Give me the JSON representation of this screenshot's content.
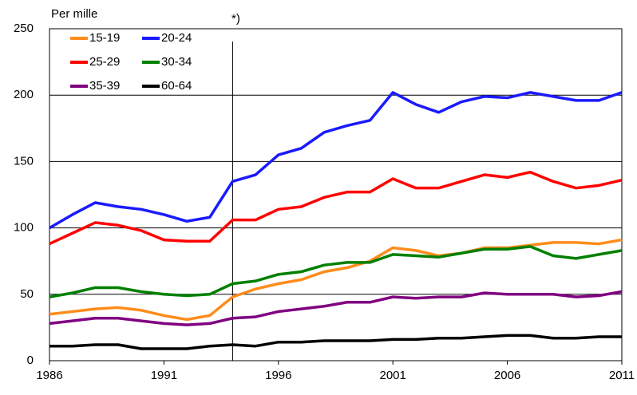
{
  "chart_data": {
    "type": "line",
    "ylabel": "Per mille",
    "x": [
      1986,
      1987,
      1988,
      1989,
      1990,
      1991,
      1992,
      1993,
      1994,
      1995,
      1996,
      1997,
      1998,
      1999,
      2000,
      2001,
      2002,
      2003,
      2004,
      2005,
      2006,
      2007,
      2008,
      2009,
      2010,
      2011
    ],
    "xlim": [
      1986,
      2011
    ],
    "xticks": [
      1986,
      1991,
      1996,
      2001,
      2006,
      2011
    ],
    "ylim": [
      0,
      250
    ],
    "yticks": [
      0,
      50,
      100,
      150,
      200,
      250
    ],
    "grid": true,
    "legend": "top-left",
    "annotations": [
      {
        "text": "*)",
        "x": 1994
      }
    ],
    "series": [
      {
        "name": "15-19",
        "color": "#ff8c1a",
        "values": [
          35,
          37,
          39,
          40,
          38,
          34,
          31,
          34,
          48,
          54,
          58,
          61,
          67,
          70,
          75,
          85,
          83,
          79,
          81,
          85,
          85,
          87,
          89,
          89,
          88,
          91
        ]
      },
      {
        "name": "20-24",
        "color": "#1a1aff",
        "values": [
          100,
          110,
          119,
          116,
          114,
          110,
          105,
          108,
          135,
          140,
          155,
          160,
          172,
          177,
          181,
          202,
          193,
          187,
          195,
          199,
          198,
          202,
          199,
          196,
          196,
          202
        ]
      },
      {
        "name": "25-29",
        "color": "#ff0000",
        "values": [
          88,
          96,
          104,
          102,
          98,
          91,
          90,
          90,
          106,
          106,
          114,
          116,
          123,
          127,
          127,
          137,
          130,
          130,
          135,
          140,
          138,
          142,
          135,
          130,
          132,
          136
        ]
      },
      {
        "name": "30-34",
        "color": "#008000",
        "values": [
          48,
          51,
          55,
          55,
          52,
          50,
          49,
          50,
          58,
          60,
          65,
          67,
          72,
          74,
          74,
          80,
          79,
          78,
          81,
          84,
          84,
          86,
          79,
          77,
          80,
          83
        ]
      },
      {
        "name": "35-39",
        "color": "#800080",
        "values": [
          28,
          30,
          32,
          32,
          30,
          28,
          27,
          28,
          32,
          33,
          37,
          39,
          41,
          44,
          44,
          48,
          47,
          48,
          48,
          51,
          50,
          50,
          50,
          48,
          49,
          52
        ]
      },
      {
        "name": "60-64",
        "color": "#000000",
        "values": [
          11,
          11,
          12,
          12,
          9,
          9,
          9,
          11,
          12,
          11,
          14,
          14,
          15,
          15,
          15,
          16,
          16,
          17,
          17,
          18,
          19,
          19,
          17,
          17,
          18,
          18
        ]
      }
    ]
  }
}
